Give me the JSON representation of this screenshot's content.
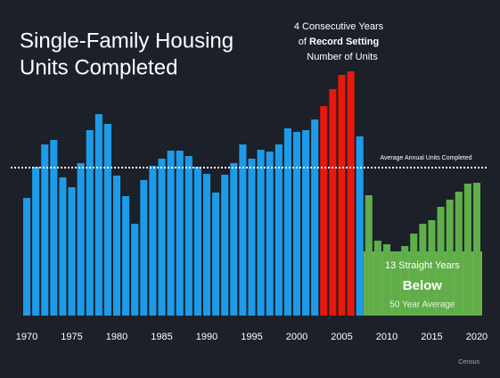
{
  "chart_data": {
    "type": "bar",
    "title": [
      "Single-Family Housing",
      "Units Completed"
    ],
    "x": [
      1970,
      1971,
      1972,
      1973,
      1974,
      1975,
      1976,
      1977,
      1978,
      1979,
      1980,
      1981,
      1982,
      1983,
      1984,
      1985,
      1986,
      1987,
      1988,
      1989,
      1990,
      1991,
      1992,
      1993,
      1994,
      1995,
      1996,
      1997,
      1998,
      1999,
      2000,
      2001,
      2002,
      2003,
      2004,
      2005,
      2006,
      2007,
      2008,
      2009,
      2010,
      2011,
      2012,
      2013,
      2014,
      2015,
      2016,
      2017,
      2018,
      2019,
      2020
    ],
    "values": [
      132,
      167,
      192,
      197,
      155,
      144,
      171,
      208,
      226,
      215,
      157,
      134,
      103,
      152,
      168,
      176,
      185,
      185,
      179,
      167,
      159,
      138,
      158,
      171,
      192,
      176,
      186,
      184,
      192,
      210,
      206,
      208,
      220,
      235,
      254,
      270,
      274,
      201,
      135,
      84,
      80,
      70,
      78,
      92,
      103,
      107,
      122,
      130,
      139,
      148,
      149
    ],
    "colors": [
      "#1e9be8",
      "#1e9be8",
      "#1e9be8",
      "#1e9be8",
      "#1e9be8",
      "#1e9be8",
      "#1e9be8",
      "#1e9be8",
      "#1e9be8",
      "#1e9be8",
      "#1e9be8",
      "#1e9be8",
      "#1e9be8",
      "#1e9be8",
      "#1e9be8",
      "#1e9be8",
      "#1e9be8",
      "#1e9be8",
      "#1e9be8",
      "#1e9be8",
      "#1e9be8",
      "#1e9be8",
      "#1e9be8",
      "#1e9be8",
      "#1e9be8",
      "#1e9be8",
      "#1e9be8",
      "#1e9be8",
      "#1e9be8",
      "#1e9be8",
      "#1e9be8",
      "#1e9be8",
      "#1e9be8",
      "#e8180c",
      "#e8180c",
      "#e8180c",
      "#e8180c",
      "#1e9be8",
      "#5fae4a",
      "#5fae4a",
      "#5fae4a",
      "#5fae4a",
      "#5fae4a",
      "#5fae4a",
      "#5fae4a",
      "#5fae4a",
      "#5fae4a",
      "#5fae4a",
      "#5fae4a",
      "#5fae4a",
      "#5fae4a"
    ],
    "xlim": [
      1969.5,
      2020.5
    ],
    "xticks": [
      1970,
      1975,
      1980,
      1985,
      1990,
      1995,
      2000,
      2005,
      2010,
      2015,
      2020
    ],
    "ylim": [
      0,
      300
    ],
    "average": {
      "value": 166,
      "label": "Average Annual Units Completed"
    },
    "record_annotation": {
      "line1": "4 Consecutive Years",
      "line2_pre": "of ",
      "line2_bold": "Record Setting",
      "line3": "Number of Units"
    },
    "below_box": {
      "line1": "13 Straight Years",
      "line2": "Below",
      "line3": "50 Year Average",
      "color": "#6ab04c"
    },
    "source": "Census"
  }
}
